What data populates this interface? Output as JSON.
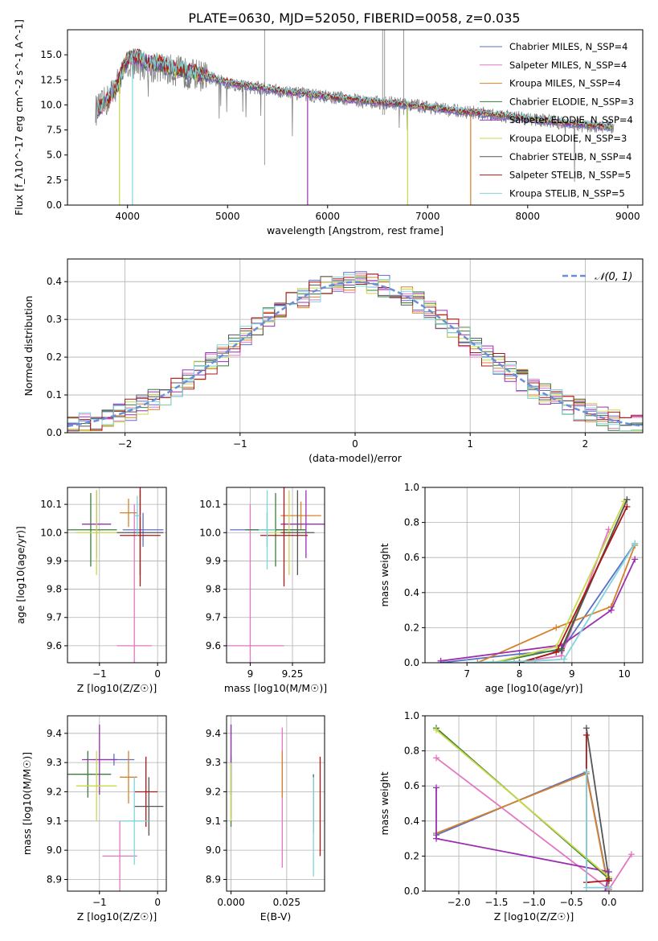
{
  "figure_title": "PLATE=0630, MJD=52050, FIBERID=0058, z=0.035",
  "palette": [
    "#5b6fc7",
    "#e377c2",
    "#d4822a",
    "#3a7d3a",
    "#9a2fb2",
    "#c9d94a",
    "#555555",
    "#b01515",
    "#7fd5dc"
  ],
  "chart_data": [
    {
      "id": "spectrum",
      "type": "line",
      "xlabel": "wavelength [Angstrom, rest frame]",
      "ylabel": "Flux [f_λ10^-17 erg cm^-2 s^-1 A^-1]",
      "xlim": [
        3400,
        9150
      ],
      "ylim": [
        0,
        17.5
      ],
      "xticks": [
        4000,
        5000,
        6000,
        7000,
        8000,
        9000
      ],
      "yticks": [
        0.0,
        2.5,
        5.0,
        7.5,
        10.0,
        12.5,
        15.0
      ],
      "legend_position": "top-right",
      "legend": [
        "Chabrier MILES, N_SSP=4",
        "Salpeter MILES, N_SSP=4",
        "Kroupa MILES, N_SSP=4",
        "Chabrier ELODIE, N_SSP=3",
        "Salpeter ELODIE, N_SSP=4",
        "Kroupa ELODIE, N_SSP=3",
        "Chabrier STELIB, N_SSP=4",
        "Salpeter STELIB, N_SSP=5",
        "Kroupa STELIB, N_SSP=5"
      ],
      "data_series": {
        "name": "data",
        "color": "#808080",
        "x": [
          3700,
          3800,
          3900,
          4000,
          4100,
          4200,
          4300,
          4400,
          4500,
          4600,
          4700,
          4800,
          4900,
          5000,
          5200,
          5400,
          5600,
          5800,
          6000,
          6200,
          6400,
          6600,
          6800,
          7000,
          7200,
          7400,
          7600,
          7800,
          8000,
          8200,
          8400,
          8600,
          8800
        ],
        "y": [
          9.5,
          10.5,
          12.2,
          14.0,
          14.2,
          13.6,
          13.8,
          13.5,
          13.4,
          13.1,
          13.0,
          12.8,
          12.4,
          12.2,
          11.8,
          11.6,
          11.2,
          11.0,
          10.8,
          10.6,
          10.3,
          10.2,
          10.0,
          9.8,
          9.5,
          9.3,
          9.1,
          8.9,
          8.6,
          8.4,
          8.1,
          7.9,
          7.8
        ]
      },
      "model_shape": {
        "x": [
          3700,
          3800,
          3900,
          4000,
          4100,
          4200,
          4300,
          4400,
          4500,
          4600,
          4700,
          4800,
          4900,
          5000,
          5200,
          5400,
          5600,
          5800,
          6000,
          6200,
          6400,
          6600,
          6800,
          7000,
          7200,
          7400,
          7600,
          7800,
          8000,
          8200,
          8400,
          8600,
          8800
        ],
        "y": [
          9.6,
          10.4,
          12.0,
          14.6,
          14.8,
          14.3,
          14.2,
          13.8,
          13.6,
          13.3,
          13.1,
          12.9,
          12.5,
          12.3,
          11.9,
          11.6,
          11.3,
          11.1,
          10.8,
          10.6,
          10.4,
          10.2,
          10.0,
          9.8,
          9.5,
          9.3,
          9.1,
          8.9,
          8.6,
          8.4,
          8.2,
          8.0,
          7.8
        ]
      }
    },
    {
      "id": "residuals",
      "type": "line",
      "xlabel": "(data-model)/error",
      "ylabel": "Normed distribution",
      "xlim": [
        -2.5,
        2.5
      ],
      "ylim": [
        0,
        0.46
      ],
      "xticks": [
        -2,
        -1,
        0,
        1,
        2
      ],
      "yticks": [
        0.0,
        0.1,
        0.2,
        0.3,
        0.4
      ],
      "legend_position": "top-right",
      "legend": [
        "𝒩(0, 1)"
      ],
      "bin_width": 0.1
    },
    {
      "id": "age_vs_Z",
      "type": "scatter",
      "xlabel": "Z [log10(Z/Z☉)]",
      "ylabel": "age  [log10(age/yr)]",
      "xlim": [
        -1.55,
        0.15
      ],
      "ylim": [
        9.54,
        10.16
      ],
      "xticks": [
        -1,
        0
      ],
      "yticks": [
        9.6,
        9.7,
        9.8,
        9.9,
        10.0,
        10.1
      ],
      "points": [
        {
          "x": -0.25,
          "y": 10.01,
          "xerr": 0.35,
          "yerr": 0.06
        },
        {
          "x": -0.4,
          "y": 9.6,
          "xerr": 0.3,
          "yerr": 0.5
        },
        {
          "x": -0.5,
          "y": 10.07,
          "xerr": 0.15,
          "yerr": 0.05
        },
        {
          "x": -1.15,
          "y": 10.01,
          "xerr": 0.45,
          "yerr": 0.13
        },
        {
          "x": -1.05,
          "y": 10.03,
          "xerr": 0.25,
          "yerr": 0.12
        },
        {
          "x": -1.05,
          "y": 10.0,
          "xerr": 0.35,
          "yerr": 0.15
        },
        {
          "x": -0.3,
          "y": 10.0,
          "xerr": 0.4,
          "yerr": 0.15
        },
        {
          "x": -0.3,
          "y": 9.99,
          "xerr": 0.35,
          "yerr": 0.18
        },
        {
          "x": -0.35,
          "y": 10.06,
          "xerr": 0.05,
          "yerr": 0.07
        }
      ]
    },
    {
      "id": "age_vs_mass",
      "type": "scatter",
      "xlabel": "mass [log10(M/M☉)]",
      "ylabel": "",
      "xlim": [
        8.86,
        9.44
      ],
      "ylim": [
        9.54,
        10.16
      ],
      "xticks": [
        9.0,
        9.25
      ],
      "yticks": [
        9.6,
        9.7,
        9.8,
        9.9,
        10.0,
        10.1
      ],
      "points": [
        {
          "x": 9.1,
          "y": 10.01,
          "xerr": 0.22,
          "yerr": 0.06
        },
        {
          "x": 9.0,
          "y": 9.6,
          "xerr": 0.2,
          "yerr": 0.5
        },
        {
          "x": 9.3,
          "y": 10.06,
          "xerr": 0.12,
          "yerr": 0.05
        },
        {
          "x": 9.15,
          "y": 10.01,
          "xerr": 0.18,
          "yerr": 0.13
        },
        {
          "x": 9.33,
          "y": 10.03,
          "xerr": 0.15,
          "yerr": 0.12
        },
        {
          "x": 9.23,
          "y": 10.0,
          "xerr": 0.12,
          "yerr": 0.15
        },
        {
          "x": 9.28,
          "y": 10.0,
          "xerr": 0.1,
          "yerr": 0.15
        },
        {
          "x": 9.2,
          "y": 9.99,
          "xerr": 0.14,
          "yerr": 0.18
        },
        {
          "x": 9.1,
          "y": 10.01,
          "xerr": 0.05,
          "yerr": 0.14
        }
      ]
    },
    {
      "id": "weight_vs_age",
      "type": "line",
      "xlabel": "age  [log10(age/yr)]",
      "ylabel": "mass weight",
      "xlim": [
        6.2,
        10.35
      ],
      "ylim": [
        0,
        1.0
      ],
      "xticks": [
        7,
        8,
        9,
        10
      ],
      "yticks": [
        0.0,
        0.2,
        0.4,
        0.6,
        0.8,
        1.0
      ],
      "series": [
        {
          "x": [
            6.5,
            8.0,
            8.8,
            10.2
          ],
          "y": [
            0.0,
            0.05,
            0.07,
            0.68
          ]
        },
        {
          "x": [
            7.9,
            8.8,
            9.7
          ],
          "y": [
            0.0,
            0.04,
            0.76
          ]
        },
        {
          "x": [
            7.2,
            8.7,
            9.75,
            10.2
          ],
          "y": [
            0.0,
            0.2,
            0.32,
            0.67
          ]
        },
        {
          "x": [
            7.5,
            8.8,
            10.05
          ],
          "y": [
            0.0,
            0.08,
            0.93
          ]
        },
        {
          "x": [
            6.5,
            8.8,
            9.75,
            10.2
          ],
          "y": [
            0.01,
            0.1,
            0.3,
            0.59
          ]
        },
        {
          "x": [
            7.5,
            8.7,
            10.0
          ],
          "y": [
            0.0,
            0.09,
            0.92
          ]
        },
        {
          "x": [
            8.0,
            8.8,
            10.05
          ],
          "y": [
            0.0,
            0.07,
            0.93
          ]
        },
        {
          "x": [
            8.0,
            8.7,
            10.05
          ],
          "y": [
            0.0,
            0.06,
            0.89
          ]
        },
        {
          "x": [
            7.0,
            8.3,
            8.85,
            10.2
          ],
          "y": [
            0.0,
            0.01,
            0.02,
            0.68
          ]
        }
      ]
    },
    {
      "id": "mass_vs_Z",
      "type": "scatter",
      "xlabel": "Z [log10(Z/Z☉)]",
      "ylabel": "mass [log10(M/M☉)]",
      "xlim": [
        -1.55,
        0.15
      ],
      "ylim": [
        8.86,
        9.46
      ],
      "xticks": [
        -1,
        0
      ],
      "yticks": [
        8.9,
        9.0,
        9.1,
        9.2,
        9.3,
        9.4
      ],
      "points": [
        {
          "x": -0.75,
          "y": 9.31,
          "xerr": 0.35,
          "yerr": 0.02
        },
        {
          "x": -0.65,
          "y": 8.98,
          "xerr": 0.3,
          "yerr": 0.12
        },
        {
          "x": -0.5,
          "y": 9.25,
          "xerr": 0.15,
          "yerr": 0.09
        },
        {
          "x": -1.2,
          "y": 9.26,
          "xerr": 0.4,
          "yerr": 0.08
        },
        {
          "x": -1.0,
          "y": 9.31,
          "xerr": 0.3,
          "yerr": 0.12
        },
        {
          "x": -1.05,
          "y": 9.22,
          "xerr": 0.35,
          "yerr": 0.12
        },
        {
          "x": -0.15,
          "y": 9.15,
          "xerr": 0.25,
          "yerr": 0.1
        },
        {
          "x": -0.2,
          "y": 9.2,
          "xerr": 0.2,
          "yerr": 0.12
        },
        {
          "x": -0.4,
          "y": 9.1,
          "xerr": 0.25,
          "yerr": 0.15
        }
      ]
    },
    {
      "id": "mass_vs_ebv",
      "type": "scatter",
      "xlabel": "E(B-V)",
      "ylabel": "",
      "xlim": [
        -0.002,
        0.042
      ],
      "ylim": [
        8.86,
        9.46
      ],
      "xticks": [
        0.0,
        0.025
      ],
      "xtick_labels": [
        "0.000",
        "0.025"
      ],
      "yticks": [
        8.9,
        9.0,
        9.1,
        9.2,
        9.3,
        9.4
      ],
      "points": [
        {
          "x": 0.0,
          "y": 9.27,
          "xerr": 0.0,
          "yerr": 0.16
        },
        {
          "x": 0.023,
          "y": 9.18,
          "xerr": 0.0,
          "yerr": 0.24
        },
        {
          "x": 0.023,
          "y": 9.26,
          "xerr": 0.0,
          "yerr": 0.08
        },
        {
          "x": 0.0,
          "y": 9.2,
          "xerr": 0.0,
          "yerr": 0.12
        },
        {
          "x": 0.0,
          "y": 9.31,
          "xerr": 0.0,
          "yerr": 0.12
        },
        {
          "x": 0.0,
          "y": 9.2,
          "xerr": 0.0,
          "yerr": 0.1
        },
        {
          "x": 0.037,
          "y": 9.16,
          "xerr": 0.0,
          "yerr": 0.1
        },
        {
          "x": 0.04,
          "y": 9.15,
          "xerr": 0.0,
          "yerr": 0.17
        },
        {
          "x": 0.037,
          "y": 9.08,
          "xerr": 0.0,
          "yerr": 0.17
        }
      ]
    },
    {
      "id": "weight_vs_Z",
      "type": "line",
      "xlabel": "Z [log10(Z/Z☉)]",
      "ylabel": "mass weight",
      "xlim": [
        -2.45,
        0.45
      ],
      "ylim": [
        0,
        1.0
      ],
      "xticks": [
        -2.0,
        -1.5,
        -1.0,
        -0.5,
        0.0
      ],
      "xtick_labels": [
        "−2.0",
        "−1.5",
        "−1.0",
        "−0.5",
        "0.0"
      ],
      "yticks": [
        0.0,
        0.2,
        0.4,
        0.6,
        0.8,
        1.0
      ],
      "series": [
        {
          "x": [
            -2.3,
            -0.3,
            0.0
          ],
          "y": [
            0.32,
            0.68,
            0.01
          ]
        },
        {
          "x": [
            -2.3,
            0.0,
            0.3
          ],
          "y": [
            0.76,
            0.01,
            0.21
          ]
        },
        {
          "x": [
            -2.3,
            -0.3,
            0.0
          ],
          "y": [
            0.33,
            0.67,
            0.0
          ]
        },
        {
          "x": [
            -2.3,
            0.0
          ],
          "y": [
            0.93,
            0.07
          ]
        },
        {
          "x": [
            -2.3,
            -2.3,
            0.0,
            -0.05
          ],
          "y": [
            0.59,
            0.3,
            0.11,
            0.0
          ]
        },
        {
          "x": [
            -2.3,
            0.0
          ],
          "y": [
            0.92,
            0.08
          ]
        },
        {
          "x": [
            -0.3,
            0.0
          ],
          "y": [
            0.93,
            0.07
          ]
        },
        {
          "x": [
            -0.3,
            -0.3,
            0.0
          ],
          "y": [
            0.89,
            0.05,
            0.06
          ]
        },
        {
          "x": [
            -0.3,
            -0.3,
            0.0
          ],
          "y": [
            0.68,
            0.02,
            0.02
          ]
        }
      ]
    }
  ]
}
